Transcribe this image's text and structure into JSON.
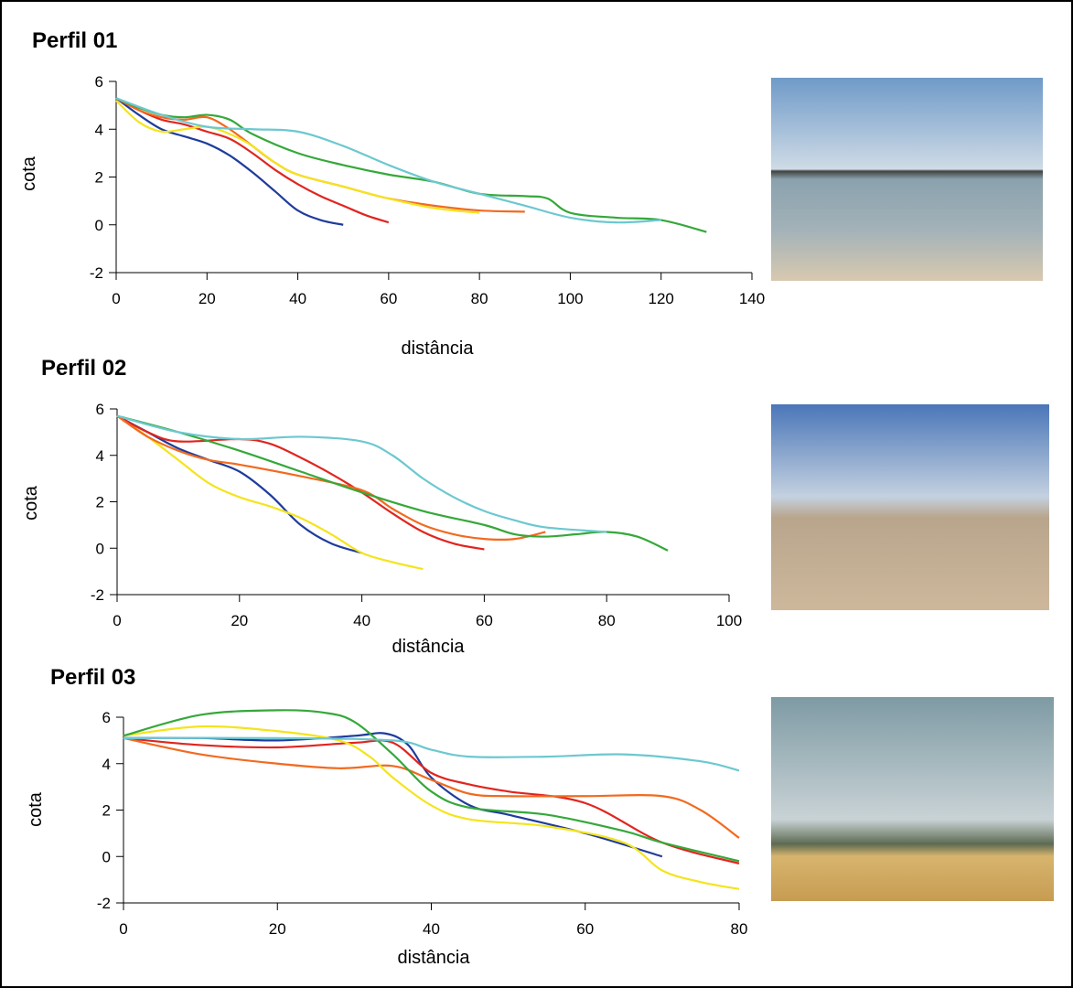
{
  "chart_data": [
    {
      "type": "line",
      "title": "Perfil 01",
      "xlabel": "distância",
      "ylabel": "cota",
      "xlim": [
        0,
        140
      ],
      "ylim": [
        -2,
        6
      ],
      "xticks": [
        0,
        20,
        40,
        60,
        80,
        100,
        120,
        140
      ],
      "yticks": [
        -2,
        0,
        2,
        4,
        6
      ],
      "series": [
        {
          "color": "#1f3c9c",
          "x": [
            0,
            5,
            10,
            15,
            20,
            25,
            30,
            35,
            40,
            45,
            50
          ],
          "values": [
            5.3,
            4.6,
            4.0,
            3.7,
            3.4,
            2.9,
            2.2,
            1.4,
            0.6,
            0.2,
            0
          ]
        },
        {
          "color": "#e0251f",
          "x": [
            0,
            5,
            10,
            15,
            20,
            25,
            30,
            35,
            40,
            45,
            50,
            55,
            60
          ],
          "values": [
            5.3,
            4.8,
            4.4,
            4.2,
            3.9,
            3.6,
            3.0,
            2.3,
            1.7,
            1.2,
            0.8,
            0.4,
            0.1
          ]
        },
        {
          "color": "#f26a1f",
          "x": [
            0,
            5,
            10,
            15,
            20,
            25,
            30,
            35,
            40,
            50,
            60,
            70,
            80,
            90
          ],
          "values": [
            5.3,
            4.8,
            4.5,
            4.4,
            4.5,
            4.0,
            3.3,
            2.6,
            2.1,
            1.6,
            1.1,
            0.8,
            0.6,
            0.55
          ]
        },
        {
          "color": "#f4e41c",
          "x": [
            0,
            5,
            10,
            15,
            20,
            25,
            30,
            35,
            40,
            50,
            60,
            70,
            80
          ],
          "values": [
            5.2,
            4.3,
            3.9,
            4.0,
            4.1,
            3.8,
            3.3,
            2.6,
            2.1,
            1.6,
            1.1,
            0.7,
            0.5
          ]
        },
        {
          "color": "#35a83a",
          "x": [
            0,
            5,
            10,
            15,
            20,
            25,
            30,
            40,
            50,
            60,
            70,
            80,
            90,
            95,
            100,
            110,
            120,
            130
          ],
          "values": [
            5.3,
            4.9,
            4.6,
            4.5,
            4.6,
            4.4,
            3.8,
            3.0,
            2.5,
            2.1,
            1.8,
            1.3,
            1.2,
            1.1,
            0.5,
            0.3,
            0.2,
            -0.3
          ]
        },
        {
          "color": "#6cc8d0",
          "x": [
            0,
            10,
            20,
            30,
            40,
            50,
            60,
            70,
            80,
            90,
            100,
            110,
            120
          ],
          "values": [
            5.3,
            4.6,
            4.1,
            4.0,
            3.9,
            3.3,
            2.5,
            1.8,
            1.3,
            0.8,
            0.3,
            0.1,
            0.2
          ]
        }
      ]
    },
    {
      "type": "line",
      "title": "Perfil 02",
      "xlabel": "distância",
      "ylabel": "cota",
      "xlim": [
        0,
        100
      ],
      "ylim": [
        -2,
        6
      ],
      "xticks": [
        0,
        20,
        40,
        60,
        80,
        100
      ],
      "yticks": [
        -2,
        0,
        2,
        4,
        6
      ],
      "series": [
        {
          "color": "#1f3c9c",
          "x": [
            0,
            5,
            10,
            15,
            20,
            25,
            30,
            35,
            40
          ],
          "values": [
            5.7,
            5.0,
            4.3,
            3.8,
            3.3,
            2.3,
            1.0,
            0.2,
            -0.2
          ]
        },
        {
          "color": "#f4e41c",
          "x": [
            0,
            5,
            10,
            15,
            20,
            25,
            30,
            35,
            40,
            45,
            50
          ],
          "values": [
            5.7,
            4.8,
            3.8,
            2.8,
            2.2,
            1.8,
            1.3,
            0.6,
            -0.2,
            -0.6,
            -0.9
          ]
        },
        {
          "color": "#e0251f",
          "x": [
            0,
            5,
            10,
            20,
            25,
            30,
            35,
            40,
            45,
            50,
            55,
            60
          ],
          "values": [
            5.7,
            5.0,
            4.6,
            4.7,
            4.5,
            3.9,
            3.2,
            2.4,
            1.5,
            0.7,
            0.2,
            -0.05
          ]
        },
        {
          "color": "#f26a1f",
          "x": [
            0,
            5,
            10,
            15,
            20,
            30,
            40,
            45,
            50,
            55,
            60,
            65,
            70
          ],
          "values": [
            5.7,
            4.8,
            4.2,
            3.8,
            3.6,
            3.1,
            2.5,
            1.7,
            1.0,
            0.6,
            0.4,
            0.4,
            0.7
          ]
        },
        {
          "color": "#35a83a",
          "x": [
            0,
            10,
            20,
            30,
            40,
            50,
            60,
            65,
            70,
            75,
            80,
            85,
            90
          ],
          "values": [
            5.7,
            5.0,
            4.2,
            3.3,
            2.4,
            1.6,
            1.0,
            0.6,
            0.5,
            0.6,
            0.7,
            0.5,
            -0.1
          ]
        },
        {
          "color": "#6cc8d0",
          "x": [
            0,
            10,
            20,
            30,
            40,
            45,
            50,
            55,
            60,
            65,
            70,
            80
          ],
          "values": [
            5.7,
            5.0,
            4.7,
            4.8,
            4.6,
            4.0,
            3.0,
            2.2,
            1.6,
            1.2,
            0.9,
            0.7
          ]
        }
      ]
    },
    {
      "type": "line",
      "title": "Perfil 03",
      "xlabel": "distância",
      "ylabel": "cota",
      "xlim": [
        0,
        80
      ],
      "ylim": [
        -2,
        6
      ],
      "xticks": [
        0,
        20,
        40,
        60,
        80
      ],
      "yticks": [
        -2,
        0,
        2,
        4,
        6
      ],
      "series": [
        {
          "color": "#1f3c9c",
          "x": [
            0,
            10,
            20,
            30,
            34,
            37,
            40,
            45,
            50,
            60,
            70
          ],
          "values": [
            5.1,
            5.1,
            5.0,
            5.2,
            5.3,
            4.8,
            3.4,
            2.2,
            1.8,
            1.0,
            0.0
          ]
        },
        {
          "color": "#e0251f",
          "x": [
            0,
            10,
            20,
            30,
            35,
            40,
            45,
            50,
            60,
            70,
            80
          ],
          "values": [
            5.1,
            4.8,
            4.7,
            4.9,
            4.9,
            3.6,
            3.1,
            2.8,
            2.3,
            0.6,
            -0.3
          ]
        },
        {
          "color": "#f26a1f",
          "x": [
            0,
            10,
            20,
            28,
            35,
            40,
            45,
            50,
            60,
            70,
            75,
            80
          ],
          "values": [
            5.1,
            4.4,
            4.0,
            3.8,
            3.9,
            3.3,
            2.7,
            2.6,
            2.6,
            2.6,
            2.0,
            0.8
          ]
        },
        {
          "color": "#f4e41c",
          "x": [
            0,
            10,
            20,
            28,
            32,
            35,
            40,
            45,
            55,
            65,
            70,
            75,
            80
          ],
          "values": [
            5.2,
            5.6,
            5.4,
            5.0,
            4.3,
            3.4,
            2.2,
            1.6,
            1.3,
            0.6,
            -0.6,
            -1.1,
            -1.4
          ]
        },
        {
          "color": "#35a83a",
          "x": [
            0,
            10,
            20,
            26,
            30,
            35,
            40,
            45,
            55,
            65,
            70,
            80
          ],
          "values": [
            5.2,
            6.1,
            6.3,
            6.2,
            5.8,
            4.4,
            2.8,
            2.1,
            1.8,
            1.1,
            0.6,
            -0.2
          ]
        },
        {
          "color": "#6cc8d0",
          "x": [
            0,
            20,
            35,
            40,
            45,
            55,
            65,
            75,
            80
          ],
          "values": [
            5.1,
            5.1,
            5.0,
            4.6,
            4.3,
            4.3,
            4.4,
            4.1,
            3.7
          ]
        }
      ]
    }
  ]
}
